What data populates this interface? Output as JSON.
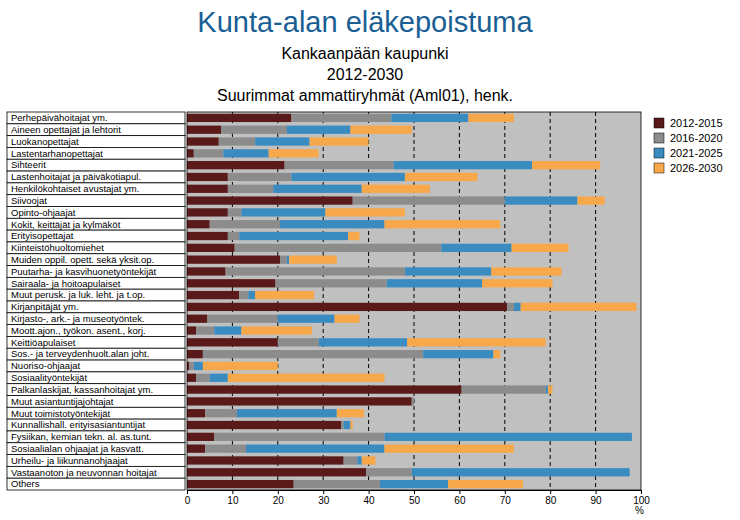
{
  "chart_data": {
    "type": "bar",
    "orientation": "horizontal",
    "stacked": true,
    "grid": true,
    "legend": "top-right",
    "title": "Kunta-alan eläkepoistuma",
    "subtitle": [
      "Kankaanpään kaupunki",
      "2012-2030",
      "Suurimmat ammattiryhmät (Aml01), henk."
    ],
    "x_label": "%",
    "xlim": [
      0,
      100
    ],
    "xticks": [
      0,
      10,
      20,
      30,
      40,
      50,
      60,
      70,
      80,
      90,
      100
    ],
    "categories": [
      "Perhepäivähoitajat ym.",
      "Aineen opettajat ja lehtorit",
      "Luokanopettajat",
      "Lastentarhanopettajat",
      "Sihteerit",
      "Lastenhoitajat ja päiväkotiapul.",
      "Henkilökohtaiset avustajat ym.",
      "Siivoojat",
      "Opinto-ohjaajat",
      "Kokit, keittäjät ja kylmäköt",
      "Erityisopettajat",
      "Kiinteistöhuoltomiehet",
      "Muiden oppil. opett. sekä yksit.op.",
      "Puutarha- ja kasvihuonetyöntekijät",
      "Sairaala- ja hoitoapulaiset",
      "Muut perusk. ja luk. leht. ja t.op.",
      "Kirjanpitäjät ym.",
      "Kirjasto-, ark.- ja museotyöntek.",
      "Moott.ajon., työkon. asent., korj.",
      "Keittiöapulaiset",
      "Sos.- ja terveydenhuolt.alan joht.",
      "Nuoriso-ohjaajat",
      "Sosiaalityöntekijät",
      "Palkanlaskijat, kassanhoitajat ym.",
      "Muut asiantuntijajohtajat",
      "Muut toimistotyöntekijät",
      "Kunnallishall. erityisasiantuntijat",
      "Fysiikan, kemian tekn. al. as.tunt.",
      "Sosiaalialan ohjaajat ja kasvatt.",
      "Urheilu- ja liikunnanohjaajat",
      "Vastaanoton ja neuvonnan hoitajat",
      "Others"
    ],
    "series": [
      {
        "name": "2012-2015",
        "color": "#5a1a1a",
        "values": [
          23,
          7.5,
          7,
          1.5,
          21.5,
          9,
          9,
          36.5,
          9,
          5,
          9,
          10.5,
          20.5,
          8.5,
          19.5,
          11.5,
          70.5,
          4.5,
          2,
          20,
          3.5,
          0.5,
          2,
          60.5,
          49.5,
          4,
          34,
          6,
          4,
          34.5,
          39.5,
          23.5
        ]
      },
      {
        "name": "2016-2020",
        "color": "#8c8c8c",
        "values": [
          22,
          14.5,
          8,
          6.5,
          24,
          14,
          10,
          33.5,
          3,
          15.5,
          2.5,
          45.5,
          1.5,
          39.5,
          24.5,
          2,
          1.5,
          15.5,
          4,
          9,
          48.5,
          1,
          3,
          18.5,
          0.5,
          7,
          0.5,
          37.5,
          9,
          3,
          10,
          19
        ]
      },
      {
        "name": "2021-2025",
        "color": "#3a8cc0",
        "values": [
          17,
          14,
          12,
          10,
          30.5,
          25,
          19.5,
          16,
          18.5,
          23,
          24,
          15.5,
          0.5,
          19,
          21,
          1.5,
          1.5,
          12.5,
          6,
          19.5,
          15.5,
          2,
          4,
          0.5,
          0,
          22,
          1.5,
          54.5,
          30.5,
          1,
          48,
          15
        ]
      },
      {
        "name": "2026-2030",
        "color": "#f7a84a",
        "values": [
          10,
          13.5,
          13,
          11,
          15,
          16,
          15,
          6,
          17.5,
          25.5,
          2.5,
          12.5,
          10.5,
          15.5,
          15.5,
          13,
          25.5,
          5.5,
          15.5,
          30.5,
          1.5,
          16.5,
          34.5,
          1,
          0,
          6,
          0.5,
          0,
          28.5,
          3,
          0,
          16.5
        ]
      }
    ]
  }
}
